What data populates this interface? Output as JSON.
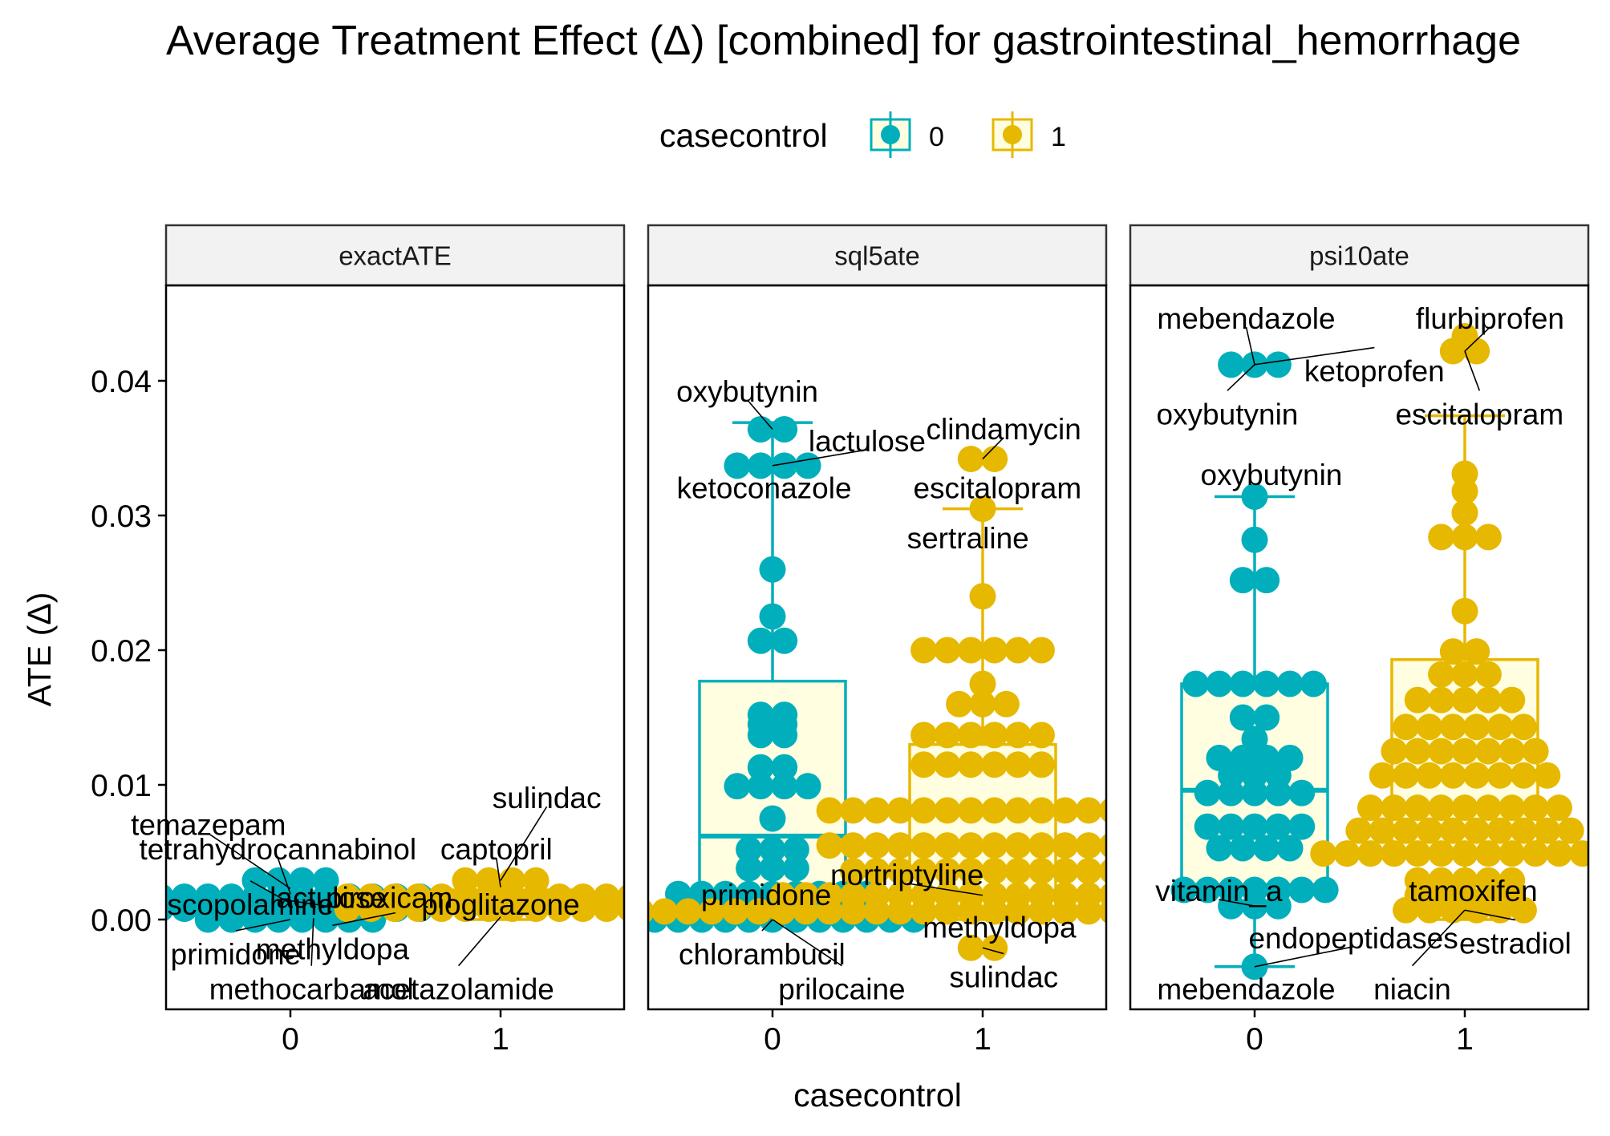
{
  "chart_data": {
    "type": "box+dotplot",
    "title": "Average Treatment Effect (Δ)  [combined] for gastrointestinal_hemorrhage",
    "xlabel": "casecontrol",
    "ylabel": "ATE (Δ)",
    "legend": {
      "title": "casecontrol",
      "position": "top",
      "entries": [
        {
          "label": "0",
          "color": "#00AFBB"
        },
        {
          "label": "1",
          "color": "#E7B800"
        }
      ]
    },
    "ylim": [
      -0.0068,
      0.0465
    ],
    "yticks": [
      0.0,
      0.01,
      0.02,
      0.03,
      0.04
    ],
    "ytick_labels": [
      "0.00",
      "0.01",
      "0.02",
      "0.03",
      "0.04"
    ],
    "categories": [
      "0",
      "1"
    ],
    "grid": false,
    "box_fill": "#FFFEE0",
    "panels": [
      {
        "strip": "exactATE",
        "series": [
          {
            "casecontrol": "0",
            "box": {
              "whisker_low": 0.0,
              "q1": 0.0008,
              "median": 0.0012,
              "q3": 0.0018,
              "whisker_high": 0.0029
            },
            "points": [
              0.0029,
              0.0029,
              0.0029,
              0.0029,
              0.0017,
              0.0017,
              0.0017,
              0.0017,
              0.0017,
              0.0017,
              0.0017,
              0.0017,
              0.0017,
              0.0017,
              0.0017,
              0.0017,
              0.0008,
              0.0008,
              0.0008,
              0.0008,
              0.0008,
              0.0008,
              0.0008,
              0.0008,
              0.0008,
              0.0008,
              0.0008,
              0.0008,
              0.0,
              0.0,
              0.0,
              0.0,
              0.0,
              0.0,
              0.0,
              0.0
            ]
          },
          {
            "casecontrol": "1",
            "box": {
              "whisker_low": 0.0,
              "q1": 0.0008,
              "median": 0.0015,
              "q3": 0.0022,
              "whisker_high": 0.0029
            },
            "points": [
              0.0029,
              0.0029,
              0.0029,
              0.0029,
              0.0017,
              0.0017,
              0.0017,
              0.0017,
              0.0017,
              0.0017,
              0.0017,
              0.0017,
              0.0017,
              0.0017,
              0.0017,
              0.0017,
              0.0017,
              0.0017,
              0.0008,
              0.0008,
              0.0008,
              0.0008,
              0.0008,
              0.0008,
              0.0008,
              0.0008,
              0.0008,
              0.0008,
              0.0008,
              0.0008,
              0.0008,
              0.0008
            ]
          }
        ],
        "labels": [
          {
            "text": "temazepam",
            "x": 0,
            "y": 0.0023,
            "tx": -0.39,
            "ty": 0.0071
          },
          {
            "text": "tetrahydrocannabinol",
            "x": 0,
            "y": 0.0019,
            "tx": -0.06,
            "ty": 0.0053
          },
          {
            "text": "scopolamine",
            "x": 0,
            "y": 0.0012,
            "tx": -0.19,
            "ty": 0.0012
          },
          {
            "text": "lactulose",
            "x": 0,
            "y": 0.0014,
            "tx": 0.18,
            "ty": 0.0017
          },
          {
            "text": "piroxicam",
            "x": 0.5,
            "y": 0.0014,
            "tx": 0.47,
            "ty": 0.0017
          },
          {
            "text": "primidone",
            "x": 0,
            "y": 0.0,
            "tx": -0.26,
            "ty": -0.0025
          },
          {
            "text": "methyldopa",
            "x": 0.5,
            "y": 0.0005,
            "tx": 0.2,
            "ty": -0.0021
          },
          {
            "text": "methocarbamol",
            "x": 0.11,
            "y": 0.0001,
            "tx": 0.1,
            "ty": -0.0051
          },
          {
            "text": "acetazolamide",
            "x": 1.0,
            "y": 0.0002,
            "tx": 0.8,
            "ty": -0.0051
          },
          {
            "text": "captopril",
            "x": 1.0,
            "y": 0.0024,
            "tx": 0.98,
            "ty": 0.0053
          },
          {
            "text": "pioglitazone",
            "x": 1.0,
            "y": 0.0015,
            "tx": 1.0,
            "ty": 0.0012
          },
          {
            "text": "sulindac",
            "x": 1.0,
            "y": 0.0029,
            "tx": 1.22,
            "ty": 0.0091
          }
        ]
      },
      {
        "strip": "sql5ate",
        "series": [
          {
            "casecontrol": "0",
            "box": {
              "whisker_low": 0.0,
              "q1": 0.0015,
              "median": 0.0062,
              "q3": 0.0177,
              "whisker_high": 0.0369
            },
            "points": [
              0.0364,
              0.0364,
              0.0337,
              0.0337,
              0.0337,
              0.0337,
              0.026,
              0.0225,
              0.0207,
              0.0207,
              0.0152,
              0.0152,
              0.0145,
              0.0145,
              0.0137,
              0.0137,
              0.0113,
              0.0113,
              0.0099,
              0.0099,
              0.0099,
              0.0099,
              0.0075,
              0.0052,
              0.0052,
              0.0052,
              0.0038,
              0.0038,
              0.0038,
              0.0019,
              0.0019,
              0.0019,
              0.0019,
              0.0019,
              0.0019,
              0.0019,
              0.0019,
              0.0019,
              0.0,
              0.0,
              0.0,
              0.0,
              0.0,
              0.0,
              0.0,
              0.0,
              0.0,
              0.0,
              0.0,
              0.0,
              0.0
            ]
          },
          {
            "casecontrol": "1",
            "box": {
              "whisker_low": 0.0,
              "q1": 0.0009,
              "median": 0.0055,
              "q3": 0.013,
              "whisker_high": 0.0305
            },
            "points": [
              0.0342,
              0.0342,
              0.0305,
              0.024,
              0.02,
              0.02,
              0.02,
              0.02,
              0.02,
              0.02,
              0.0175,
              0.016,
              0.016,
              0.016,
              0.0137,
              0.0137,
              0.0137,
              0.0137,
              0.0137,
              0.0137,
              0.0115,
              0.0115,
              0.0115,
              0.0115,
              0.0115,
              0.0115,
              0.0081,
              0.0081,
              0.0081,
              0.0081,
              0.0081,
              0.0081,
              0.0081,
              0.0081,
              0.0081,
              0.0081,
              0.0081,
              0.0081,
              0.0081,
              0.0081,
              0.0055,
              0.0055,
              0.0055,
              0.0055,
              0.0055,
              0.0055,
              0.0055,
              0.0055,
              0.0055,
              0.0055,
              0.0055,
              0.0055,
              0.0055,
              0.0055,
              0.0036,
              0.0036,
              0.0036,
              0.0036,
              0.0036,
              0.0036,
              0.0036,
              0.0036,
              0.0036,
              0.0036,
              0.0036,
              0.0036,
              0.0018,
              0.0018,
              0.0018,
              0.0018,
              0.0018,
              0.0018,
              0.0018,
              0.0018,
              0.0018,
              0.0018,
              0.0018,
              0.0018,
              0.0018,
              0.0018,
              0.0018,
              0.0018,
              0.0018,
              0.0018,
              0.0006,
              0.0006,
              0.0006,
              0.0006,
              0.0006,
              0.0006,
              0.0006,
              0.0006,
              0.0006,
              0.0006,
              0.0006,
              0.0006,
              0.0006,
              0.0006,
              0.0006,
              0.0006,
              0.0006,
              0.0006,
              0.0006,
              0.0006,
              0.0006,
              0.0006,
              0.0006,
              0.0006,
              0.0006,
              0.0006,
              0.0006,
              0.0006,
              0.0006,
              0.0006,
              0.0006,
              0.0006,
              -0.0021,
              -0.0021
            ]
          }
        ],
        "labels": [
          {
            "text": "oxybutynin",
            "x": 0,
            "y": 0.0364,
            "tx": -0.12,
            "ty": 0.0393
          },
          {
            "text": "lactulose",
            "x": 0,
            "y": 0.0337,
            "tx": 0.45,
            "ty": 0.0356
          },
          {
            "text": "ketoconazole",
            "x": 0,
            "y": 0.0337,
            "tx": -0.04,
            "ty": 0.0321
          },
          {
            "text": "primidone",
            "x": 0,
            "y": 0.0019,
            "tx": -0.03,
            "ty": 0.0019
          },
          {
            "text": "chlorambucil",
            "x": 0,
            "y": 0.0,
            "tx": -0.05,
            "ty": -0.0025
          },
          {
            "text": "prilocaine",
            "x": 0,
            "y": 0.0,
            "tx": 0.33,
            "ty": -0.0051
          },
          {
            "text": "clindamycin",
            "x": 1,
            "y": 0.0342,
            "tx": 1.1,
            "ty": 0.0365
          },
          {
            "text": "escitalopram",
            "x": 1,
            "y": 0.0342,
            "tx": 1.07,
            "ty": 0.0321
          },
          {
            "text": "sertraline",
            "x": 1,
            "y": 0.0305,
            "tx": 0.93,
            "ty": 0.0284
          },
          {
            "text": "nortriptyline",
            "x": 1,
            "y": 0.0018,
            "tx": 0.64,
            "ty": 0.0034
          },
          {
            "text": "methyldopa",
            "x": 1,
            "y": -0.0021,
            "tx": 1.08,
            "ty": -0.0005
          },
          {
            "text": "sulindac",
            "x": 1,
            "y": -0.0021,
            "tx": 1.1,
            "ty": -0.0042
          }
        ]
      },
      {
        "strip": "psi10ate",
        "series": [
          {
            "casecontrol": "0",
            "box": {
              "whisker_low": -0.0035,
              "q1": 0.0026,
              "median": 0.0096,
              "q3": 0.0175,
              "whisker_high": 0.0314
            },
            "points": [
              0.0412,
              0.0412,
              0.0412,
              0.0314,
              0.0282,
              0.0252,
              0.0252,
              0.0175,
              0.0175,
              0.0175,
              0.0175,
              0.0175,
              0.0175,
              0.015,
              0.015,
              0.0134,
              0.012,
              0.012,
              0.012,
              0.012,
              0.0107,
              0.0107,
              0.0107,
              0.0094,
              0.0094,
              0.0094,
              0.0094,
              0.0094,
              0.0069,
              0.0069,
              0.0069,
              0.0069,
              0.0069,
              0.0053,
              0.0053,
              0.0053,
              0.0053,
              0.0022,
              0.0022,
              0.0022,
              0.0022,
              0.0022,
              0.0022,
              0.0022,
              0.001,
              0.001,
              0.001,
              -0.0035
            ]
          },
          {
            "casecontrol": "1",
            "box": {
              "whisker_low": 0.0,
              "q1": 0.0049,
              "median": 0.011,
              "q3": 0.0193,
              "whisker_high": 0.0374
            },
            "points": [
              0.0433,
              0.0422,
              0.0422,
              0.0331,
              0.0318,
              0.0302,
              0.0284,
              0.0284,
              0.0284,
              0.0229,
              0.0199,
              0.0199,
              0.0182,
              0.0182,
              0.0182,
              0.0163,
              0.0163,
              0.0163,
              0.0163,
              0.0163,
              0.0143,
              0.0143,
              0.0143,
              0.0143,
              0.0143,
              0.0143,
              0.0125,
              0.0125,
              0.0125,
              0.0125,
              0.0125,
              0.0125,
              0.0125,
              0.0107,
              0.0107,
              0.0107,
              0.0107,
              0.0107,
              0.0107,
              0.0107,
              0.0107,
              0.0083,
              0.0083,
              0.0083,
              0.0083,
              0.0083,
              0.0083,
              0.0083,
              0.0083,
              0.0083,
              0.0066,
              0.0066,
              0.0066,
              0.0066,
              0.0066,
              0.0066,
              0.0066,
              0.0066,
              0.0066,
              0.0066,
              0.0049,
              0.0049,
              0.0049,
              0.0049,
              0.0049,
              0.0049,
              0.0049,
              0.0049,
              0.0049,
              0.0049,
              0.0049,
              0.0049,
              0.0049,
              0.0029,
              0.0029,
              0.0029,
              0.0029,
              0.0029,
              0.0018,
              0.0018,
              0.0018,
              0.0018,
              0.0018,
              0.0007,
              0.0007,
              0.0007,
              0.0007,
              0.0007,
              0.0007
            ]
          }
        ],
        "labels": [
          {
            "text": "mebendazole",
            "x": 0,
            "y": 0.0412,
            "tx": -0.04,
            "ty": 0.0447
          },
          {
            "text": "ketoprofen",
            "x": 0,
            "y": 0.0412,
            "tx": 0.57,
            "ty": 0.0408
          },
          {
            "text": "oxybutynin",
            "x": 0,
            "y": 0.0412,
            "tx": -0.13,
            "ty": 0.0376
          },
          {
            "text": "oxybutynin",
            "x": 0,
            "y": 0.0314,
            "tx": 0.08,
            "ty": 0.0331
          },
          {
            "text": "vitamin_a",
            "x": 0,
            "y": 0.001,
            "tx": -0.17,
            "ty": 0.0022
          },
          {
            "text": "endopeptidases",
            "x": 0,
            "y": -0.0035,
            "tx": 0.47,
            "ty": -0.0013
          },
          {
            "text": "mebendazole",
            "x": 0,
            "y": -0.0035,
            "tx": -0.04,
            "ty": -0.0051
          },
          {
            "text": "flurbiprofen",
            "x": 1,
            "y": 0.0422,
            "tx": 1.12,
            "ty": 0.0447
          },
          {
            "text": "escitalopram",
            "x": 1,
            "y": 0.0422,
            "tx": 1.07,
            "ty": 0.0376
          },
          {
            "text": "tamoxifen",
            "x": 1,
            "y": 0.0029,
            "tx": 1.04,
            "ty": 0.0022
          },
          {
            "text": "estradiol",
            "x": 1,
            "y": 0.0007,
            "tx": 1.24,
            "ty": -0.0017
          },
          {
            "text": "niacin",
            "x": 1,
            "y": 0.0007,
            "tx": 0.75,
            "ty": -0.0051
          }
        ]
      }
    ]
  }
}
